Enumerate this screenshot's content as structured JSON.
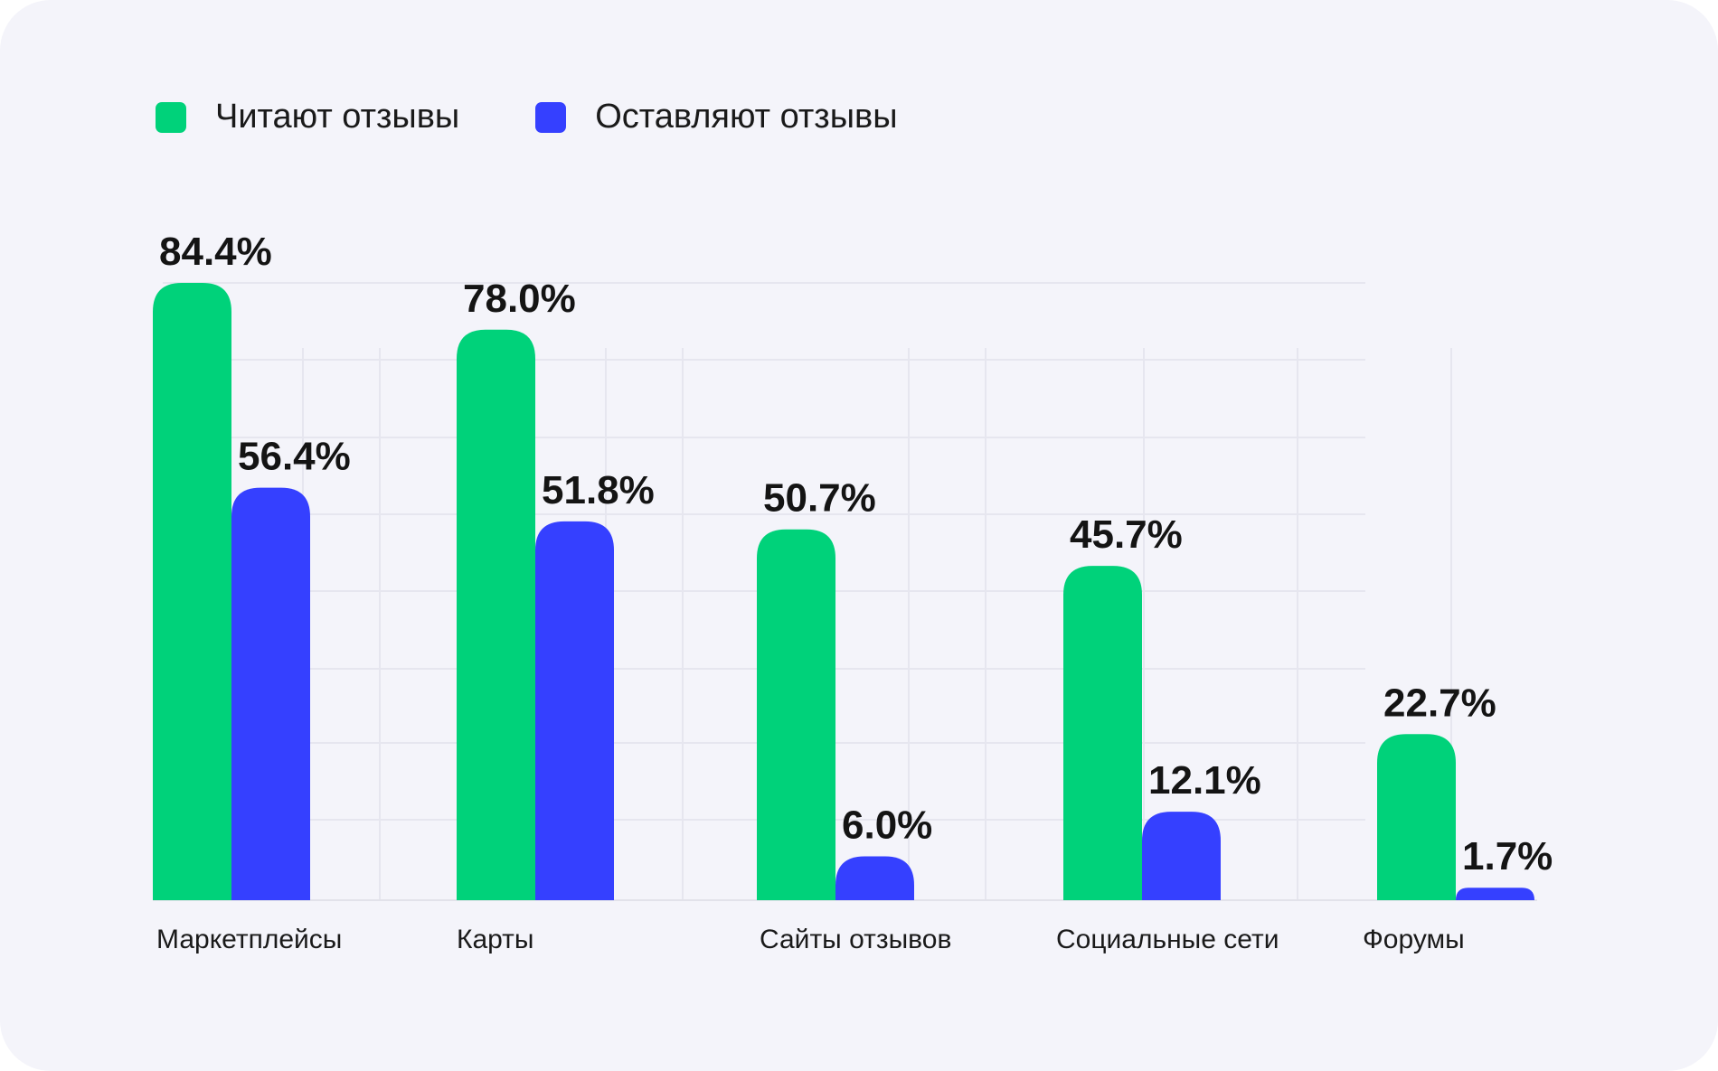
{
  "chart_data": {
    "type": "bar",
    "title": "",
    "xlabel": "",
    "ylabel": "",
    "ylim": [
      0,
      84.4
    ],
    "grid": true,
    "legend_position": "top-left",
    "unit": "%",
    "categories": [
      "Маркетплейсы",
      "Карты",
      "Сайты отзывов",
      "Социальные сети",
      "Форумы"
    ],
    "series": [
      {
        "name": "Читают отзывы",
        "color": "#00d27a",
        "values": [
          84.4,
          78.0,
          50.7,
          45.7,
          22.7
        ],
        "labels": [
          "84.4%",
          "78.0%",
          "50.7%",
          "45.7%",
          "22.7%"
        ]
      },
      {
        "name": "Оставляют отзывы",
        "color": "#3540ff",
        "values": [
          56.4,
          51.8,
          6.0,
          12.1,
          1.7
        ],
        "labels": [
          "56.4%",
          "51.8%",
          "6.0%",
          "12.1%",
          "1.7%"
        ]
      }
    ]
  },
  "legend": {
    "items": [
      {
        "label": "Читают отзывы",
        "color": "#00d27a"
      },
      {
        "label": "Оставляют отзывы",
        "color": "#3540ff"
      }
    ]
  }
}
